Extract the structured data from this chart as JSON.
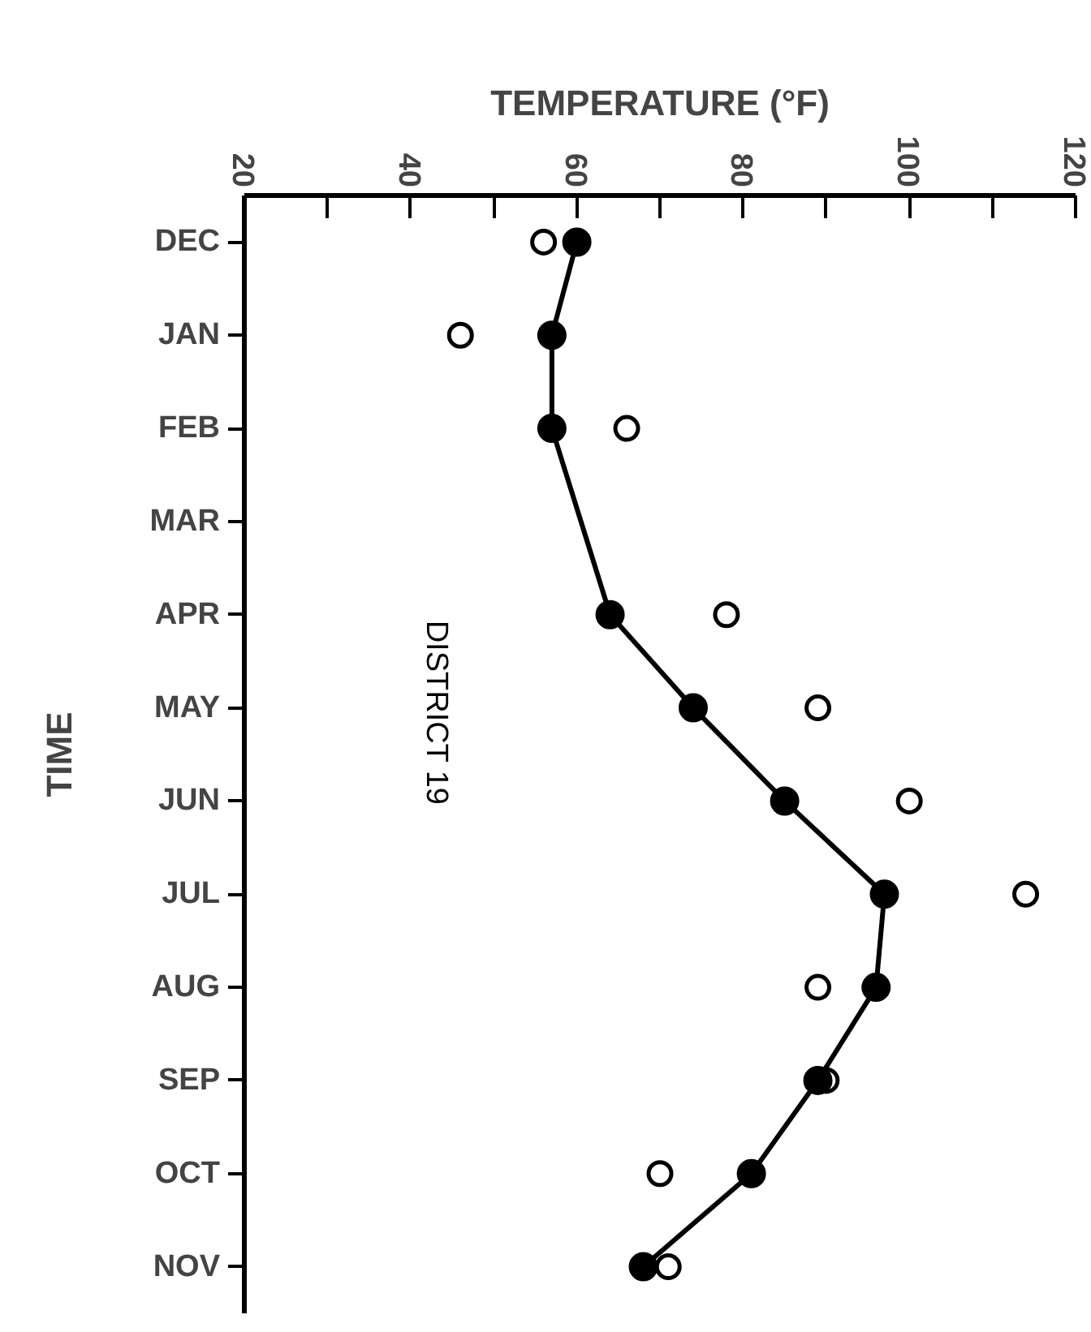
{
  "chart_data": {
    "type": "line",
    "orientation": "horizontal",
    "xlabel": "TEMPERATURE (°F)",
    "ylabel": "TIME",
    "categories": [
      "DEC",
      "JAN",
      "FEB",
      "MAR",
      "APR",
      "MAY",
      "JUN",
      "JUL",
      "AUG",
      "SEP",
      "OCT",
      "NOV"
    ],
    "series": [
      {
        "color": "#000000",
        "marker": "circle",
        "line_style": "solid",
        "values": [
          60,
          57,
          57,
          null,
          64,
          74,
          85,
          97,
          96,
          89,
          81,
          68
        ]
      },
      {
        "type": "scatter",
        "color": "#000000",
        "marker": "circle",
        "values": [
          56,
          46,
          66,
          null,
          78,
          89,
          100,
          114,
          89,
          90,
          70,
          71
        ]
      }
    ],
    "xlim": [
      20,
      120
    ],
    "xticks": [
      {
        "value": 20,
        "label": "20"
      },
      {
        "value": 30,
        "label": null
      },
      {
        "value": 40,
        "label": "40"
      },
      {
        "value": 50,
        "label": null
      },
      {
        "value": 60,
        "label": "60"
      },
      {
        "value": 70,
        "label": null
      },
      {
        "value": 80,
        "label": "80"
      },
      {
        "value": 90,
        "label": null
      },
      {
        "value": 100,
        "label": "100"
      },
      {
        "value": 110,
        "label": null
      },
      {
        "value": 120,
        "label": "120"
      }
    ],
    "annotations": [
      "DISTRICT 19"
    ],
    "grid": false
  }
}
